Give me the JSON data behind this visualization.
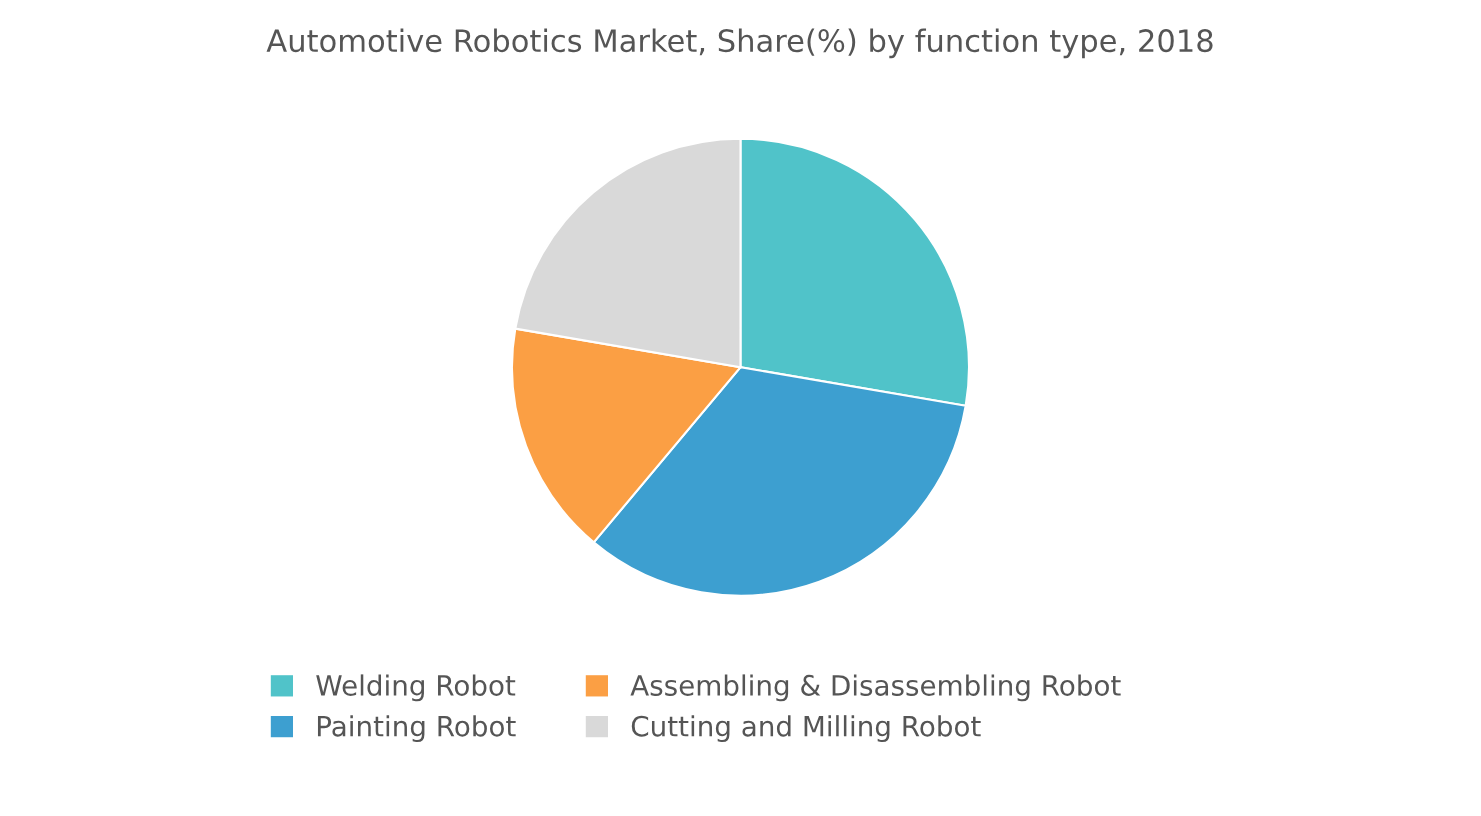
{
  "chart_data": {
    "type": "pie",
    "title": "Automotive Robotics Market, Share(%) by function type, 2018",
    "categories": [
      "Welding Robot",
      "Painting Robot",
      "Assembling & Disassembling Robot",
      "Cutting and Milling Robot"
    ],
    "values": [
      27.7,
      33.4,
      16.6,
      22.3
    ],
    "colors": [
      "#50c3c9",
      "#3d9fd0",
      "#fb9f44",
      "#d9d9d9"
    ],
    "legend": "bottom"
  }
}
